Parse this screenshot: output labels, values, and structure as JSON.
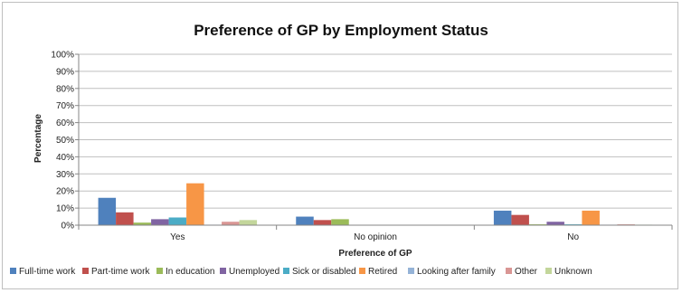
{
  "chart_data": {
    "type": "bar",
    "title": "Preference of GP by Employment Status",
    "xlabel": "Preference of GP",
    "ylabel": "Percentage",
    "ylim": [
      0,
      100
    ],
    "yticks": [
      "0%",
      "10%",
      "20%",
      "30%",
      "40%",
      "50%",
      "60%",
      "70%",
      "80%",
      "90%",
      "100%"
    ],
    "grid": true,
    "legend": "bottom",
    "categories": [
      "Yes",
      "No opinion",
      "No"
    ],
    "series": [
      {
        "name": "Full-time work",
        "color": "#4f81bd",
        "values": [
          16,
          5,
          8.5
        ]
      },
      {
        "name": "Part-time work",
        "color": "#c0504d",
        "values": [
          7.5,
          3,
          6
        ]
      },
      {
        "name": "In education",
        "color": "#9bbb59",
        "values": [
          1.5,
          3.5,
          0.5
        ]
      },
      {
        "name": "Unemployed",
        "color": "#8064a2",
        "values": [
          3.5,
          0,
          2
        ]
      },
      {
        "name": "Sick or disabled",
        "color": "#4bacc6",
        "values": [
          4.5,
          0,
          0.5
        ]
      },
      {
        "name": "Retired",
        "color": "#f79646",
        "values": [
          24.5,
          0,
          8.5
        ]
      },
      {
        "name": "Looking after family",
        "color": "#95b3d7",
        "values": [
          0.3,
          0,
          0.3
        ]
      },
      {
        "name": "Other",
        "color": "#d99694",
        "values": [
          2,
          0,
          0.5
        ]
      },
      {
        "name": "Unknown",
        "color": "#c3d69b",
        "values": [
          3,
          0,
          0.3
        ]
      }
    ]
  }
}
